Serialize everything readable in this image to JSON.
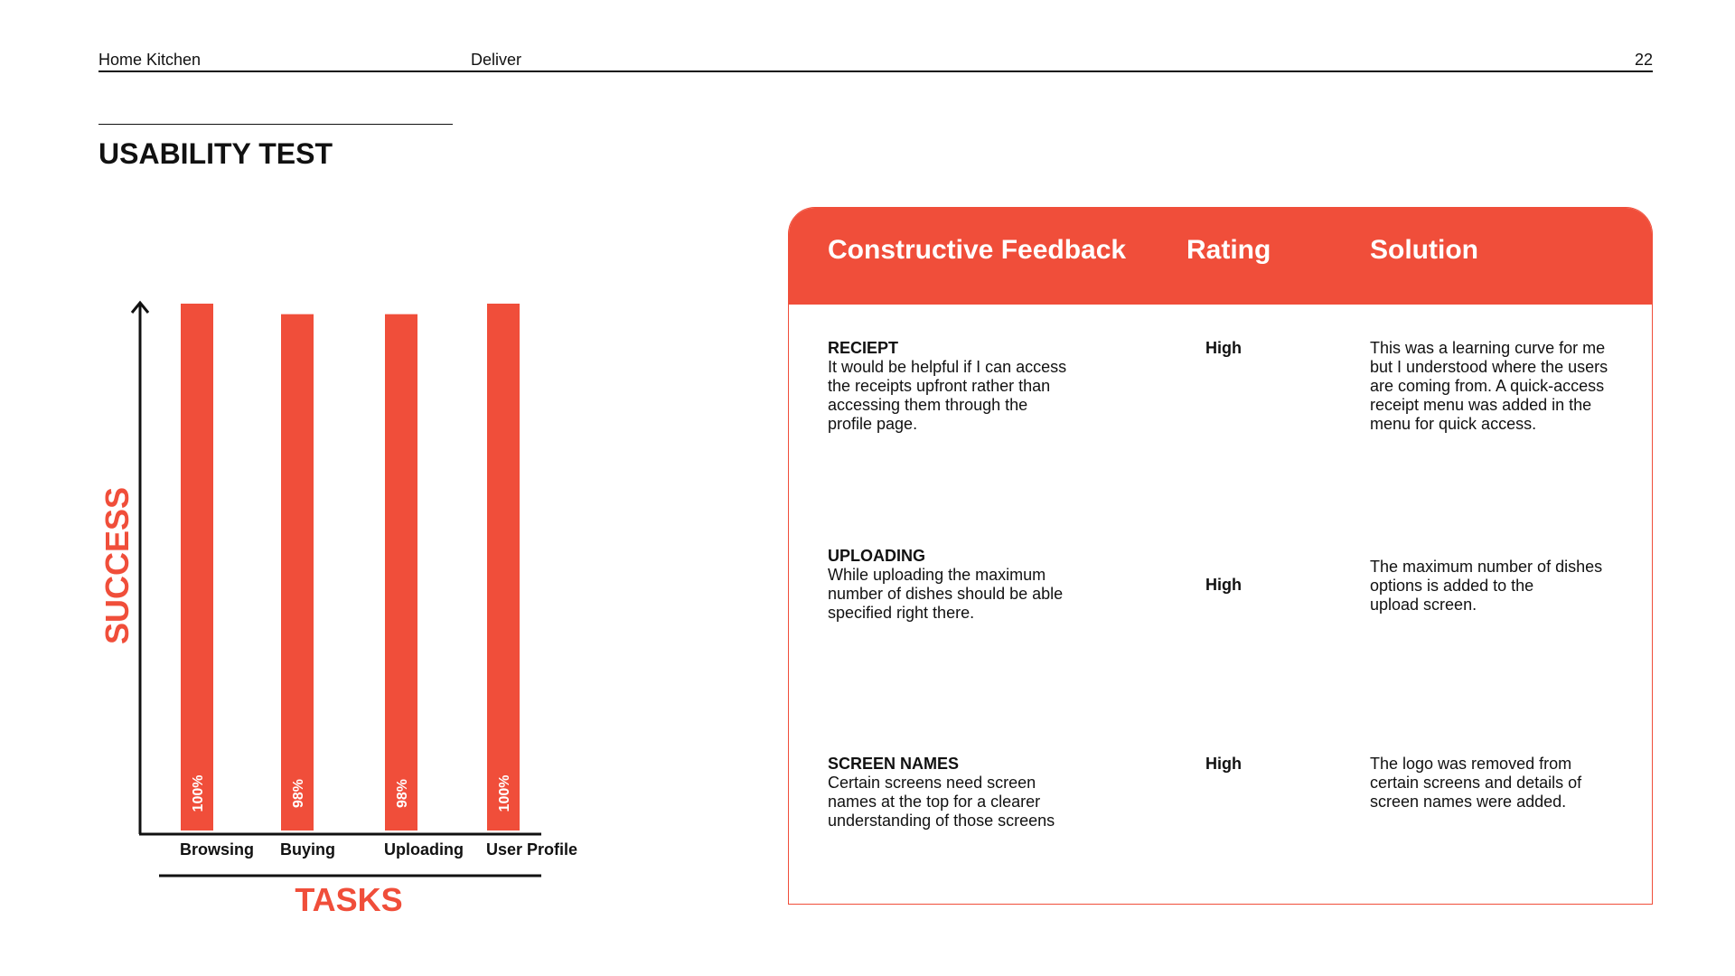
{
  "header": {
    "left": "Home Kitchen",
    "middle": "Deliver",
    "page": "22"
  },
  "title": "USABILITY TEST",
  "chart_data": {
    "type": "bar",
    "x_label": "TASKS",
    "y_label": "SUCCESS",
    "categories": [
      "Browsing",
      "Buying",
      "Uploading",
      "User Profile"
    ],
    "values": [
      100,
      98,
      98,
      100
    ],
    "value_labels": [
      "100%",
      "98%",
      "98%",
      "100%"
    ],
    "color": "#f04e3a",
    "ylim": [
      0,
      100
    ]
  },
  "table": {
    "columns": [
      "Constructive Feedback",
      "Rating",
      "Solution"
    ],
    "rows": [
      {
        "title": "RECIEPT",
        "feedback": [
          "It would be helpful if I can access",
          "the receipts upfront rather than",
          "accessing them through the",
          "profile page."
        ],
        "rating": "High",
        "solution": [
          "This was a learning curve for me",
          "but I understood where the users",
          "are coming from. A quick-access",
          "receipt menu was added in the",
          "menu for quick access."
        ]
      },
      {
        "title": "UPLOADING",
        "feedback": [
          "While uploading the maximum",
          "number of dishes should be able",
          "specified right there."
        ],
        "rating": "High",
        "solution": [
          "The maximum number of dishes",
          "options is added to the",
          "upload screen."
        ]
      },
      {
        "title": "SCREEN NAMES",
        "feedback": [
          "Certain screens need screen",
          "names at the top for a clearer",
          "understanding of those screens"
        ],
        "rating": "High",
        "solution": [
          "The logo was removed from",
          "certain screens and details of",
          "screen names were added."
        ]
      }
    ]
  }
}
